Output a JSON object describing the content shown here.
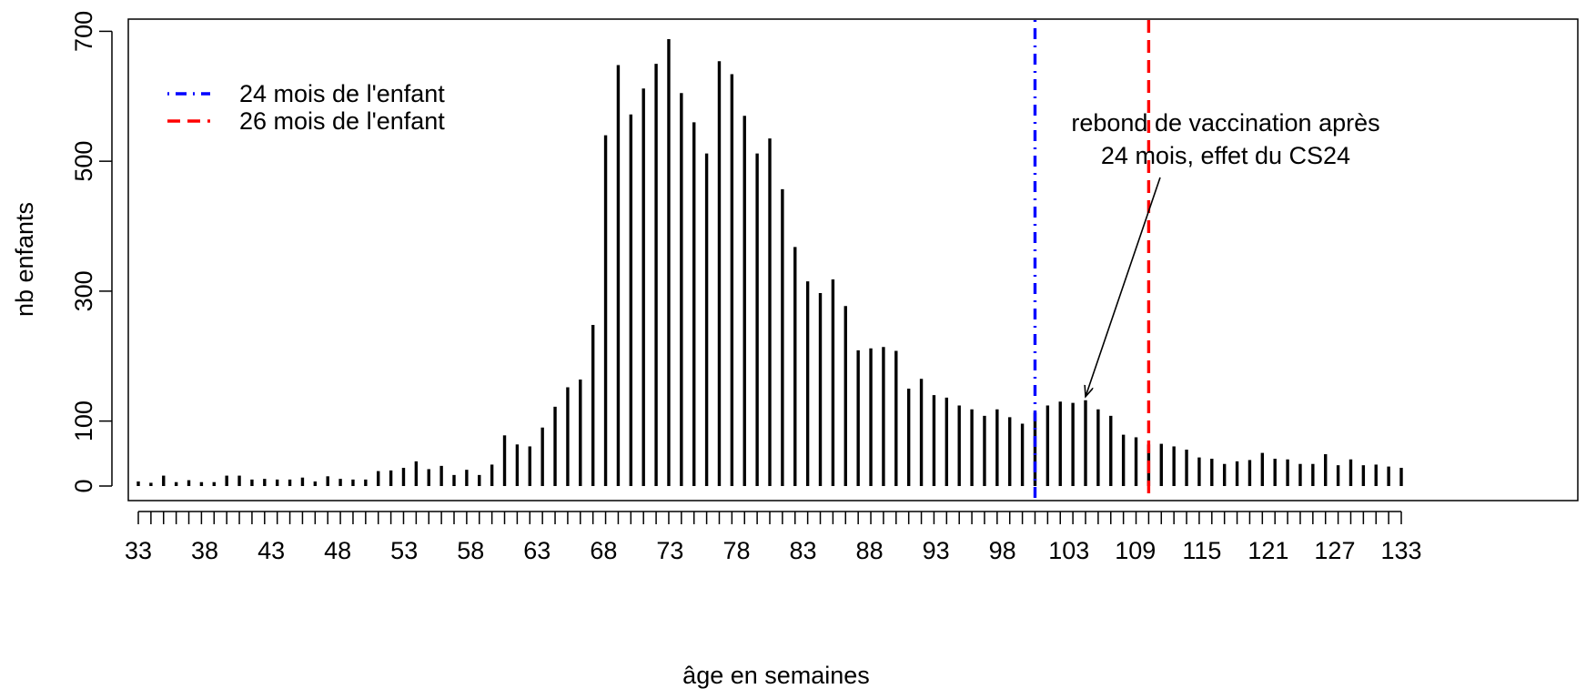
{
  "chart_data": {
    "type": "bar",
    "xlabel": "âge en semaines",
    "ylabel": "nb enfants",
    "ylim": [
      0,
      700
    ],
    "yticks": [
      0,
      100,
      300,
      500,
      700
    ],
    "x_tick_labels": [
      "33",
      "38",
      "43",
      "48",
      "53",
      "58",
      "63",
      "68",
      "73",
      "78",
      "83",
      "88",
      "93",
      "98",
      "103",
      "109",
      "115",
      "121",
      "127",
      "133"
    ],
    "values": [
      7,
      5,
      16,
      6,
      9,
      6,
      6,
      16,
      16,
      10,
      11,
      10,
      10,
      13,
      7,
      15,
      11,
      10,
      10,
      23,
      24,
      28,
      38,
      26,
      31,
      17,
      25,
      17,
      33,
      78,
      64,
      61,
      90,
      122,
      152,
      164,
      248,
      540,
      648,
      572,
      612,
      650,
      688,
      605,
      560,
      512,
      654,
      634,
      570,
      512,
      535,
      457,
      368,
      315,
      297,
      318,
      277,
      209,
      212,
      214,
      208,
      150,
      165,
      140,
      136,
      124,
      118,
      108,
      118,
      106,
      96,
      113,
      124,
      130,
      128,
      132,
      118,
      108,
      79,
      75,
      64,
      65,
      61,
      56,
      44,
      42,
      34,
      38,
      40,
      51,
      42,
      41,
      34,
      34,
      49,
      32,
      41,
      32,
      33,
      30,
      28
    ],
    "x_start": 33,
    "legend": [
      {
        "label": "24 mois de l'enfant",
        "color": "#0000ff",
        "dash": "dotdash"
      },
      {
        "label": "26 mois de l'enfant",
        "color": "#ff0000",
        "dash": "dashed"
      }
    ],
    "legend_position": "top-left",
    "vlines": [
      {
        "x": 104,
        "color": "#0000ff",
        "dash": "dotdash"
      },
      {
        "x": 113,
        "color": "#ff0000",
        "dash": "dashed"
      }
    ],
    "annotation": {
      "lines": [
        "rebond de vaccination après",
        "24 mois, effet du CS24"
      ],
      "arrow_to_x": 108,
      "arrow_to_y": 132,
      "color": "#555555"
    }
  }
}
